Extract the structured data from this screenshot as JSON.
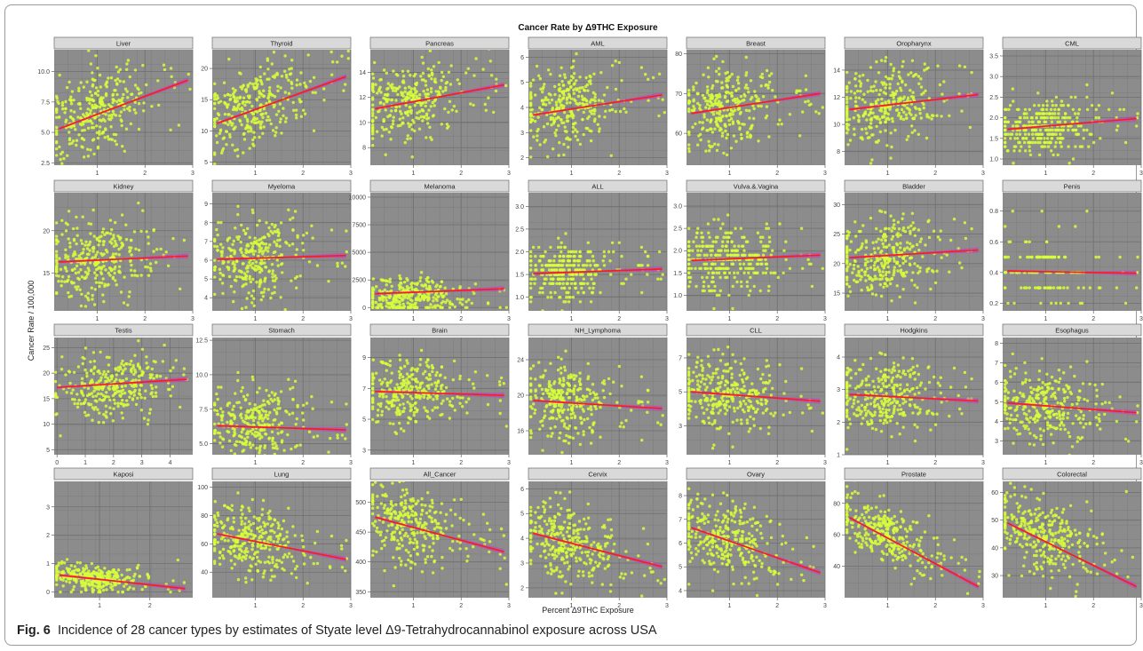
{
  "figure": {
    "suptitle": "Cancer Rate by Δ9THC Exposure",
    "ylabel": "Cancer Rate / 100,000",
    "xlabel": "Percent Δ9THC Exposure",
    "caption_label": "Fig. 6",
    "caption_text": "Incidence of 28 cancer types by estimates of Styate level Δ9-Tetrahydrocannabinol exposure across USA"
  },
  "colors": {
    "panel_bg": "#8c8c8c",
    "points": "#d7ff3a",
    "fit_line": "#ff1a1a",
    "ribbon": "#c23cc8",
    "strip_bg": "#d9d9d9",
    "grid": "#6f6f6f"
  },
  "chart_data": [
    {
      "type": "scatter",
      "title": "Liver",
      "xlim": [
        0.1,
        3
      ],
      "xticks": [
        1,
        2,
        3
      ],
      "ylim": [
        2.3,
        11.8
      ],
      "yticks": [
        "2.5",
        "5.0",
        "7.5",
        "10.0"
      ],
      "fit": [
        [
          0.2,
          5.3
        ],
        [
          2.9,
          9.3
        ]
      ],
      "cloud": {
        "xc": 0.9,
        "xs": 0.5,
        "yc": 6.6,
        "ys": 1.6,
        "slope": 1.4,
        "n": 320
      }
    },
    {
      "type": "scatter",
      "title": "Thyroid",
      "xlim": [
        0.1,
        3
      ],
      "xticks": [
        1,
        2,
        3
      ],
      "ylim": [
        4.5,
        23
      ],
      "yticks": [
        "5",
        "10",
        "15",
        "20"
      ],
      "fit": [
        [
          0.2,
          11.2
        ],
        [
          2.9,
          18.7
        ]
      ],
      "cloud": {
        "xc": 0.9,
        "xs": 0.5,
        "yc": 13.8,
        "ys": 3.2,
        "slope": 2.6,
        "n": 320
      }
    },
    {
      "type": "scatter",
      "title": "Pancreas",
      "xlim": [
        0.1,
        3
      ],
      "xticks": [
        1,
        2,
        3
      ],
      "ylim": [
        6.6,
        15.8
      ],
      "yticks": [
        "8",
        "10",
        "12",
        "14"
      ],
      "fit": [
        [
          0.2,
          11.1
        ],
        [
          2.9,
          13.0
        ]
      ],
      "cloud": {
        "xc": 0.9,
        "xs": 0.5,
        "yc": 11.7,
        "ys": 1.5,
        "slope": 0.7,
        "n": 320
      }
    },
    {
      "type": "scatter",
      "title": "AML",
      "xlim": [
        0.1,
        3
      ],
      "xticks": [
        1,
        2,
        3
      ],
      "ylim": [
        1.7,
        6.3
      ],
      "yticks": [
        "2",
        "3",
        "4",
        "5",
        "6"
      ],
      "fit": [
        [
          0.2,
          3.7
        ],
        [
          2.9,
          4.5
        ]
      ],
      "cloud": {
        "xc": 0.9,
        "xs": 0.5,
        "yc": 4.0,
        "ys": 0.7,
        "slope": 0.3,
        "n": 320
      }
    },
    {
      "type": "scatter",
      "title": "Breast",
      "xlim": [
        0.1,
        3
      ],
      "xticks": [
        1,
        2,
        3
      ],
      "ylim": [
        52,
        81
      ],
      "yticks": [
        "60",
        "70",
        "80"
      ],
      "fit": [
        [
          0.2,
          65
        ],
        [
          2.9,
          70
        ]
      ],
      "cloud": {
        "xc": 0.9,
        "xs": 0.5,
        "yc": 66.5,
        "ys": 5.5,
        "slope": 1.8,
        "n": 320
      }
    },
    {
      "type": "scatter",
      "title": "Oropharynx",
      "xlim": [
        0.1,
        3
      ],
      "xticks": [
        1,
        2,
        3
      ],
      "ylim": [
        7,
        15.5
      ],
      "yticks": [
        "8",
        "10",
        "12",
        "14"
      ],
      "fit": [
        [
          0.2,
          11.1
        ],
        [
          2.9,
          12.2
        ]
      ],
      "cloud": {
        "xc": 0.9,
        "xs": 0.5,
        "yc": 11.4,
        "ys": 1.4,
        "slope": 0.4,
        "n": 320
      }
    },
    {
      "type": "scatter",
      "title": "CML",
      "xlim": [
        0.1,
        3
      ],
      "xticks": [
        1,
        2,
        3
      ],
      "ylim": [
        0.85,
        3.65
      ],
      "yticks": [
        "1.0",
        "1.5",
        "2.0",
        "2.5",
        "3.0",
        "3.5"
      ],
      "fit": [
        [
          0.2,
          1.72
        ],
        [
          2.9,
          1.98
        ]
      ],
      "cloud": {
        "xc": 0.9,
        "xs": 0.5,
        "yc": 1.8,
        "ys": 0.35,
        "slope": 0.1,
        "n": 320,
        "ystep": 0.1
      }
    },
    {
      "type": "scatter",
      "title": "Kidney",
      "xlim": [
        0.1,
        3
      ],
      "xticks": [
        1,
        2,
        3
      ],
      "ylim": [
        10.5,
        24.5
      ],
      "yticks": [
        "15",
        "20"
      ],
      "fit": [
        [
          0.2,
          16.3
        ],
        [
          2.9,
          17.0
        ]
      ],
      "cloud": {
        "xc": 0.9,
        "xs": 0.5,
        "yc": 16.5,
        "ys": 2.3,
        "slope": 0.3,
        "n": 320
      }
    },
    {
      "type": "scatter",
      "title": "Myeloma",
      "xlim": [
        0.1,
        3
      ],
      "xticks": [
        1,
        2,
        3
      ],
      "ylim": [
        3.3,
        9.6
      ],
      "yticks": [
        "4",
        "5",
        "6",
        "7",
        "8",
        "9"
      ],
      "fit": [
        [
          0.2,
          6.05
        ],
        [
          2.9,
          6.25
        ]
      ],
      "cloud": {
        "xc": 0.9,
        "xs": 0.5,
        "yc": 6.1,
        "ys": 1.05,
        "slope": 0.1,
        "n": 320
      }
    },
    {
      "type": "scatter",
      "title": "Melanoma",
      "xlim": [
        0.1,
        3
      ],
      "xticks": [
        1,
        2,
        3
      ],
      "ylim": [
        -300,
        10400
      ],
      "yticks": [
        "0",
        "2500",
        "5000",
        "7500",
        "10000"
      ],
      "fit": [
        [
          0.2,
          1250
        ],
        [
          2.9,
          1700
        ]
      ],
      "cloud": {
        "xc": 0.9,
        "xs": 0.5,
        "yc": 900,
        "ys": 900,
        "slope": 0,
        "n": 320,
        "ymin": 0
      }
    },
    {
      "type": "scatter",
      "title": "ALL",
      "xlim": [
        0.1,
        3
      ],
      "xticks": [
        1,
        2,
        3
      ],
      "ylim": [
        0.7,
        3.3
      ],
      "yticks": [
        "1.0",
        "1.5",
        "2.0",
        "2.5",
        "3.0"
      ],
      "fit": [
        [
          0.2,
          1.52
        ],
        [
          2.9,
          1.62
        ]
      ],
      "cloud": {
        "xc": 0.9,
        "xs": 0.5,
        "yc": 1.55,
        "ys": 0.3,
        "slope": 0.05,
        "n": 320,
        "ystep": 0.1
      }
    },
    {
      "type": "scatter",
      "title": "Vulva.&.Vagina",
      "xlim": [
        0.1,
        3
      ],
      "xticks": [
        1,
        2,
        3
      ],
      "ylim": [
        0.65,
        3.3
      ],
      "yticks": [
        "1.0",
        "1.5",
        "2.0",
        "2.5",
        "3.0"
      ],
      "fit": [
        [
          0.2,
          1.78
        ],
        [
          2.9,
          1.9
        ]
      ],
      "cloud": {
        "xc": 0.9,
        "xs": 0.5,
        "yc": 1.8,
        "ys": 0.4,
        "slope": 0.05,
        "n": 320,
        "ystep": 0.1
      }
    },
    {
      "type": "scatter",
      "title": "Bladder",
      "xlim": [
        0.1,
        3
      ],
      "xticks": [
        1,
        2,
        3
      ],
      "ylim": [
        12,
        32
      ],
      "yticks": [
        "15",
        "20",
        "25",
        "30"
      ],
      "fit": [
        [
          0.2,
          21.0
        ],
        [
          2.9,
          22.3
        ]
      ],
      "cloud": {
        "xc": 0.9,
        "xs": 0.5,
        "yc": 21,
        "ys": 3.3,
        "slope": 0.5,
        "n": 320
      }
    },
    {
      "type": "scatter",
      "title": "Penis",
      "xlim": [
        0.1,
        3
      ],
      "xticks": [
        1,
        2,
        3
      ],
      "ylim": [
        0.15,
        0.92
      ],
      "yticks": [
        "0.2",
        "0.4",
        "0.6",
        "0.8"
      ],
      "fit": [
        [
          0.2,
          0.41
        ],
        [
          2.9,
          0.395
        ]
      ],
      "cloud": {
        "xc": 0.9,
        "xs": 0.5,
        "yc": 0.42,
        "ys": 0.13,
        "slope": 0,
        "n": 140,
        "ystep": 0.1
      }
    },
    {
      "type": "scatter",
      "title": "Testis",
      "xlim": [
        -0.1,
        4.8
      ],
      "xticks": [
        0,
        1,
        2,
        3,
        4
      ],
      "ylim": [
        4,
        27
      ],
      "yticks": [
        "5",
        "10",
        "15",
        "20",
        "25"
      ],
      "fit": [
        [
          0,
          17.2
        ],
        [
          4.6,
          18.8
        ]
      ],
      "cloud": {
        "xc": 1.9,
        "xs": 0.9,
        "yc": 17.5,
        "ys": 3.0,
        "slope": 0.4,
        "n": 320
      }
    },
    {
      "type": "scatter",
      "title": "Stomach",
      "xlim": [
        0.1,
        3
      ],
      "xticks": [
        1,
        2,
        3
      ],
      "ylim": [
        4.2,
        12.7
      ],
      "yticks": [
        "5.0",
        "7.5",
        "10.0",
        "12.5"
      ],
      "fit": [
        [
          0.2,
          6.3
        ],
        [
          2.9,
          6.0
        ]
      ],
      "cloud": {
        "xc": 0.9,
        "xs": 0.5,
        "yc": 6.4,
        "ys": 1.4,
        "slope": -0.1,
        "n": 320
      }
    },
    {
      "type": "scatter",
      "title": "Brain",
      "xlim": [
        0.1,
        3
      ],
      "xticks": [
        1,
        2,
        3
      ],
      "ylim": [
        2.7,
        10.3
      ],
      "yticks": [
        "3",
        "5",
        "7",
        "9"
      ],
      "fit": [
        [
          0.2,
          6.8
        ],
        [
          2.9,
          6.55
        ]
      ],
      "cloud": {
        "xc": 0.9,
        "xs": 0.5,
        "yc": 6.7,
        "ys": 1.1,
        "slope": -0.1,
        "n": 320
      }
    },
    {
      "type": "scatter",
      "title": "NH_Lymphoma",
      "xlim": [
        0.1,
        3
      ],
      "xticks": [
        1,
        2,
        3
      ],
      "ylim": [
        13.3,
        26.5
      ],
      "yticks": [
        "16",
        "20",
        "24"
      ],
      "fit": [
        [
          0.2,
          19.4
        ],
        [
          2.9,
          18.5
        ]
      ],
      "cloud": {
        "xc": 0.9,
        "xs": 0.5,
        "yc": 19.2,
        "ys": 2.1,
        "slope": -0.3,
        "n": 320
      }
    },
    {
      "type": "scatter",
      "title": "CLL",
      "xlim": [
        0.1,
        3
      ],
      "xticks": [
        1,
        2,
        3
      ],
      "ylim": [
        1.3,
        8.2
      ],
      "yticks": [
        "3",
        "5",
        "7"
      ],
      "fit": [
        [
          0.2,
          5.0
        ],
        [
          2.9,
          4.45
        ]
      ],
      "cloud": {
        "xc": 0.9,
        "xs": 0.5,
        "yc": 4.9,
        "ys": 1.1,
        "slope": -0.2,
        "n": 320
      }
    },
    {
      "type": "scatter",
      "title": "Hodgkins",
      "xlim": [
        0.1,
        3
      ],
      "xticks": [
        1,
        2,
        3
      ],
      "ylim": [
        1.0,
        4.6
      ],
      "yticks": [
        "1",
        "2",
        "3",
        "4"
      ],
      "fit": [
        [
          0.2,
          2.85
        ],
        [
          2.9,
          2.65
        ]
      ],
      "cloud": {
        "xc": 0.9,
        "xs": 0.5,
        "yc": 2.8,
        "ys": 0.55,
        "slope": -0.07,
        "n": 320
      }
    },
    {
      "type": "scatter",
      "title": "Esophagus",
      "xlim": [
        0.1,
        3
      ],
      "xticks": [
        1,
        2,
        3
      ],
      "ylim": [
        2.3,
        8.3
      ],
      "yticks": [
        "3",
        "4",
        "5",
        "6",
        "7",
        "8"
      ],
      "fit": [
        [
          0.2,
          4.95
        ],
        [
          2.9,
          4.45
        ]
      ],
      "cloud": {
        "xc": 0.9,
        "xs": 0.5,
        "yc": 4.9,
        "ys": 0.9,
        "slope": -0.2,
        "n": 320
      }
    },
    {
      "type": "scatter",
      "title": "Kaposi",
      "xlim": [
        0.1,
        2.85
      ],
      "xticks": [
        1,
        2
      ],
      "ylim": [
        -0.2,
        3.9
      ],
      "yticks": [
        "0",
        "1",
        "2",
        "3"
      ],
      "fit": [
        [
          0.2,
          0.6
        ],
        [
          2.7,
          0.12
        ]
      ],
      "cloud": {
        "xc": 0.8,
        "xs": 0.45,
        "yc": 0.5,
        "ys": 0.22,
        "slope": -0.18,
        "n": 320,
        "ymin": 0
      }
    },
    {
      "type": "scatter",
      "title": "Lung",
      "xlim": [
        0.1,
        3
      ],
      "xticks": [
        1,
        2,
        3
      ],
      "ylim": [
        22,
        104
      ],
      "yticks": [
        "40",
        "60",
        "80",
        "100"
      ],
      "fit": [
        [
          0.2,
          67
        ],
        [
          2.9,
          49
        ]
      ],
      "cloud": {
        "xc": 0.9,
        "xs": 0.5,
        "yc": 62,
        "ys": 12,
        "slope": -7,
        "n": 320
      }
    },
    {
      "type": "scatter",
      "title": "All_Cancer",
      "xlim": [
        0.1,
        3
      ],
      "xticks": [
        1,
        2,
        3
      ],
      "ylim": [
        340,
        535
      ],
      "yticks": [
        "350",
        "400",
        "450",
        "500"
      ],
      "fit": [
        [
          0.2,
          475
        ],
        [
          2.9,
          417
        ]
      ],
      "cloud": {
        "xc": 0.9,
        "xs": 0.5,
        "yc": 460,
        "ys": 32,
        "slope": -20,
        "n": 320
      }
    },
    {
      "type": "scatter",
      "title": "Cervix",
      "xlim": [
        0.1,
        3
      ],
      "xticks": [
        1,
        2,
        3
      ],
      "ylim": [
        1.6,
        6.3
      ],
      "yticks": [
        "2",
        "3",
        "4",
        "5",
        "6"
      ],
      "fit": [
        [
          0.2,
          4.2
        ],
        [
          2.9,
          2.85
        ]
      ],
      "cloud": {
        "xc": 0.9,
        "xs": 0.5,
        "yc": 3.9,
        "ys": 0.8,
        "slope": -0.5,
        "n": 320
      }
    },
    {
      "type": "scatter",
      "title": "Ovary",
      "xlim": [
        0.1,
        3
      ],
      "xticks": [
        1,
        2,
        3
      ],
      "ylim": [
        3.7,
        8.6
      ],
      "yticks": [
        "4",
        "5",
        "6",
        "7",
        "8"
      ],
      "fit": [
        [
          0.2,
          6.65
        ],
        [
          2.9,
          4.75
        ]
      ],
      "cloud": {
        "xc": 0.9,
        "xs": 0.5,
        "yc": 6.2,
        "ys": 0.8,
        "slope": -0.7,
        "n": 320
      }
    },
    {
      "type": "scatter",
      "title": "Prostate",
      "xlim": [
        0.1,
        3
      ],
      "xticks": [
        1,
        2,
        3
      ],
      "ylim": [
        20,
        94
      ],
      "yticks": [
        "40",
        "60",
        "80"
      ],
      "fit": [
        [
          0.2,
          71
        ],
        [
          2.9,
          27
        ]
      ],
      "cloud": {
        "xc": 0.9,
        "xs": 0.5,
        "yc": 62,
        "ys": 9,
        "slope": -14,
        "n": 320
      }
    },
    {
      "type": "scatter",
      "title": "Colorectal",
      "xlim": [
        0.1,
        3
      ],
      "xticks": [
        1,
        2,
        3
      ],
      "ylim": [
        22,
        64
      ],
      "yticks": [
        "30",
        "40",
        "50",
        "60"
      ],
      "fit": [
        [
          0.2,
          49
        ],
        [
          2.9,
          26
        ]
      ],
      "cloud": {
        "xc": 0.9,
        "xs": 0.5,
        "yc": 45,
        "ys": 6.5,
        "slope": -7,
        "n": 320
      }
    }
  ]
}
